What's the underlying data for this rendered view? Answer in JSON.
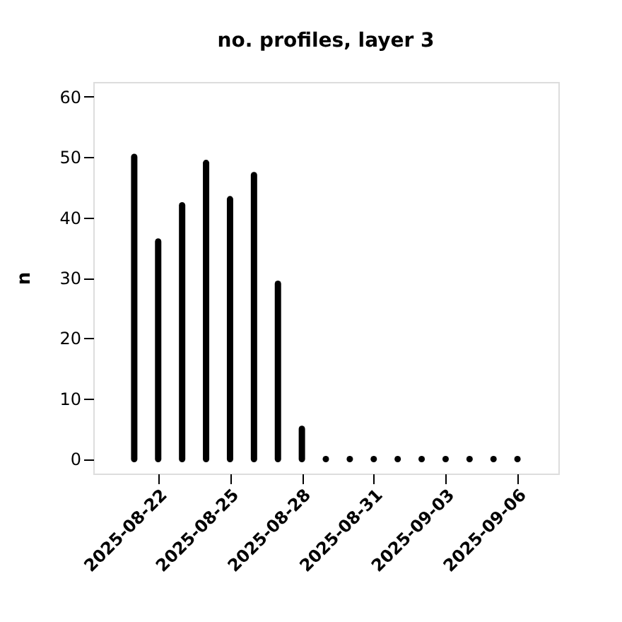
{
  "chart_data": {
    "type": "bar",
    "title": "no. profiles, layer 3",
    "ylabel": "n",
    "x": [
      "2025-08-21",
      "2025-08-22",
      "2025-08-23",
      "2025-08-24",
      "2025-08-25",
      "2025-08-26",
      "2025-08-27",
      "2025-08-28",
      "2025-08-29",
      "2025-08-30",
      "2025-08-31",
      "2025-09-01",
      "2025-09-02",
      "2025-09-03",
      "2025-09-04",
      "2025-09-05",
      "2025-09-06"
    ],
    "values": [
      50,
      36,
      42,
      49,
      43,
      47,
      29,
      5,
      0,
      0,
      0,
      0,
      0,
      0,
      0,
      0,
      0
    ],
    "color": "#000000",
    "xlim": [
      "2025-08-19T07:00",
      "2025-09-07T17:00"
    ],
    "xticks": [
      "2025-08-22",
      "2025-08-25",
      "2025-08-28",
      "2025-08-31",
      "2025-09-03",
      "2025-09-06"
    ],
    "ylim": [
      -2.4,
      62.4
    ],
    "yticks": [
      0,
      10,
      20,
      30,
      40,
      50,
      60
    ],
    "grid": false
  }
}
